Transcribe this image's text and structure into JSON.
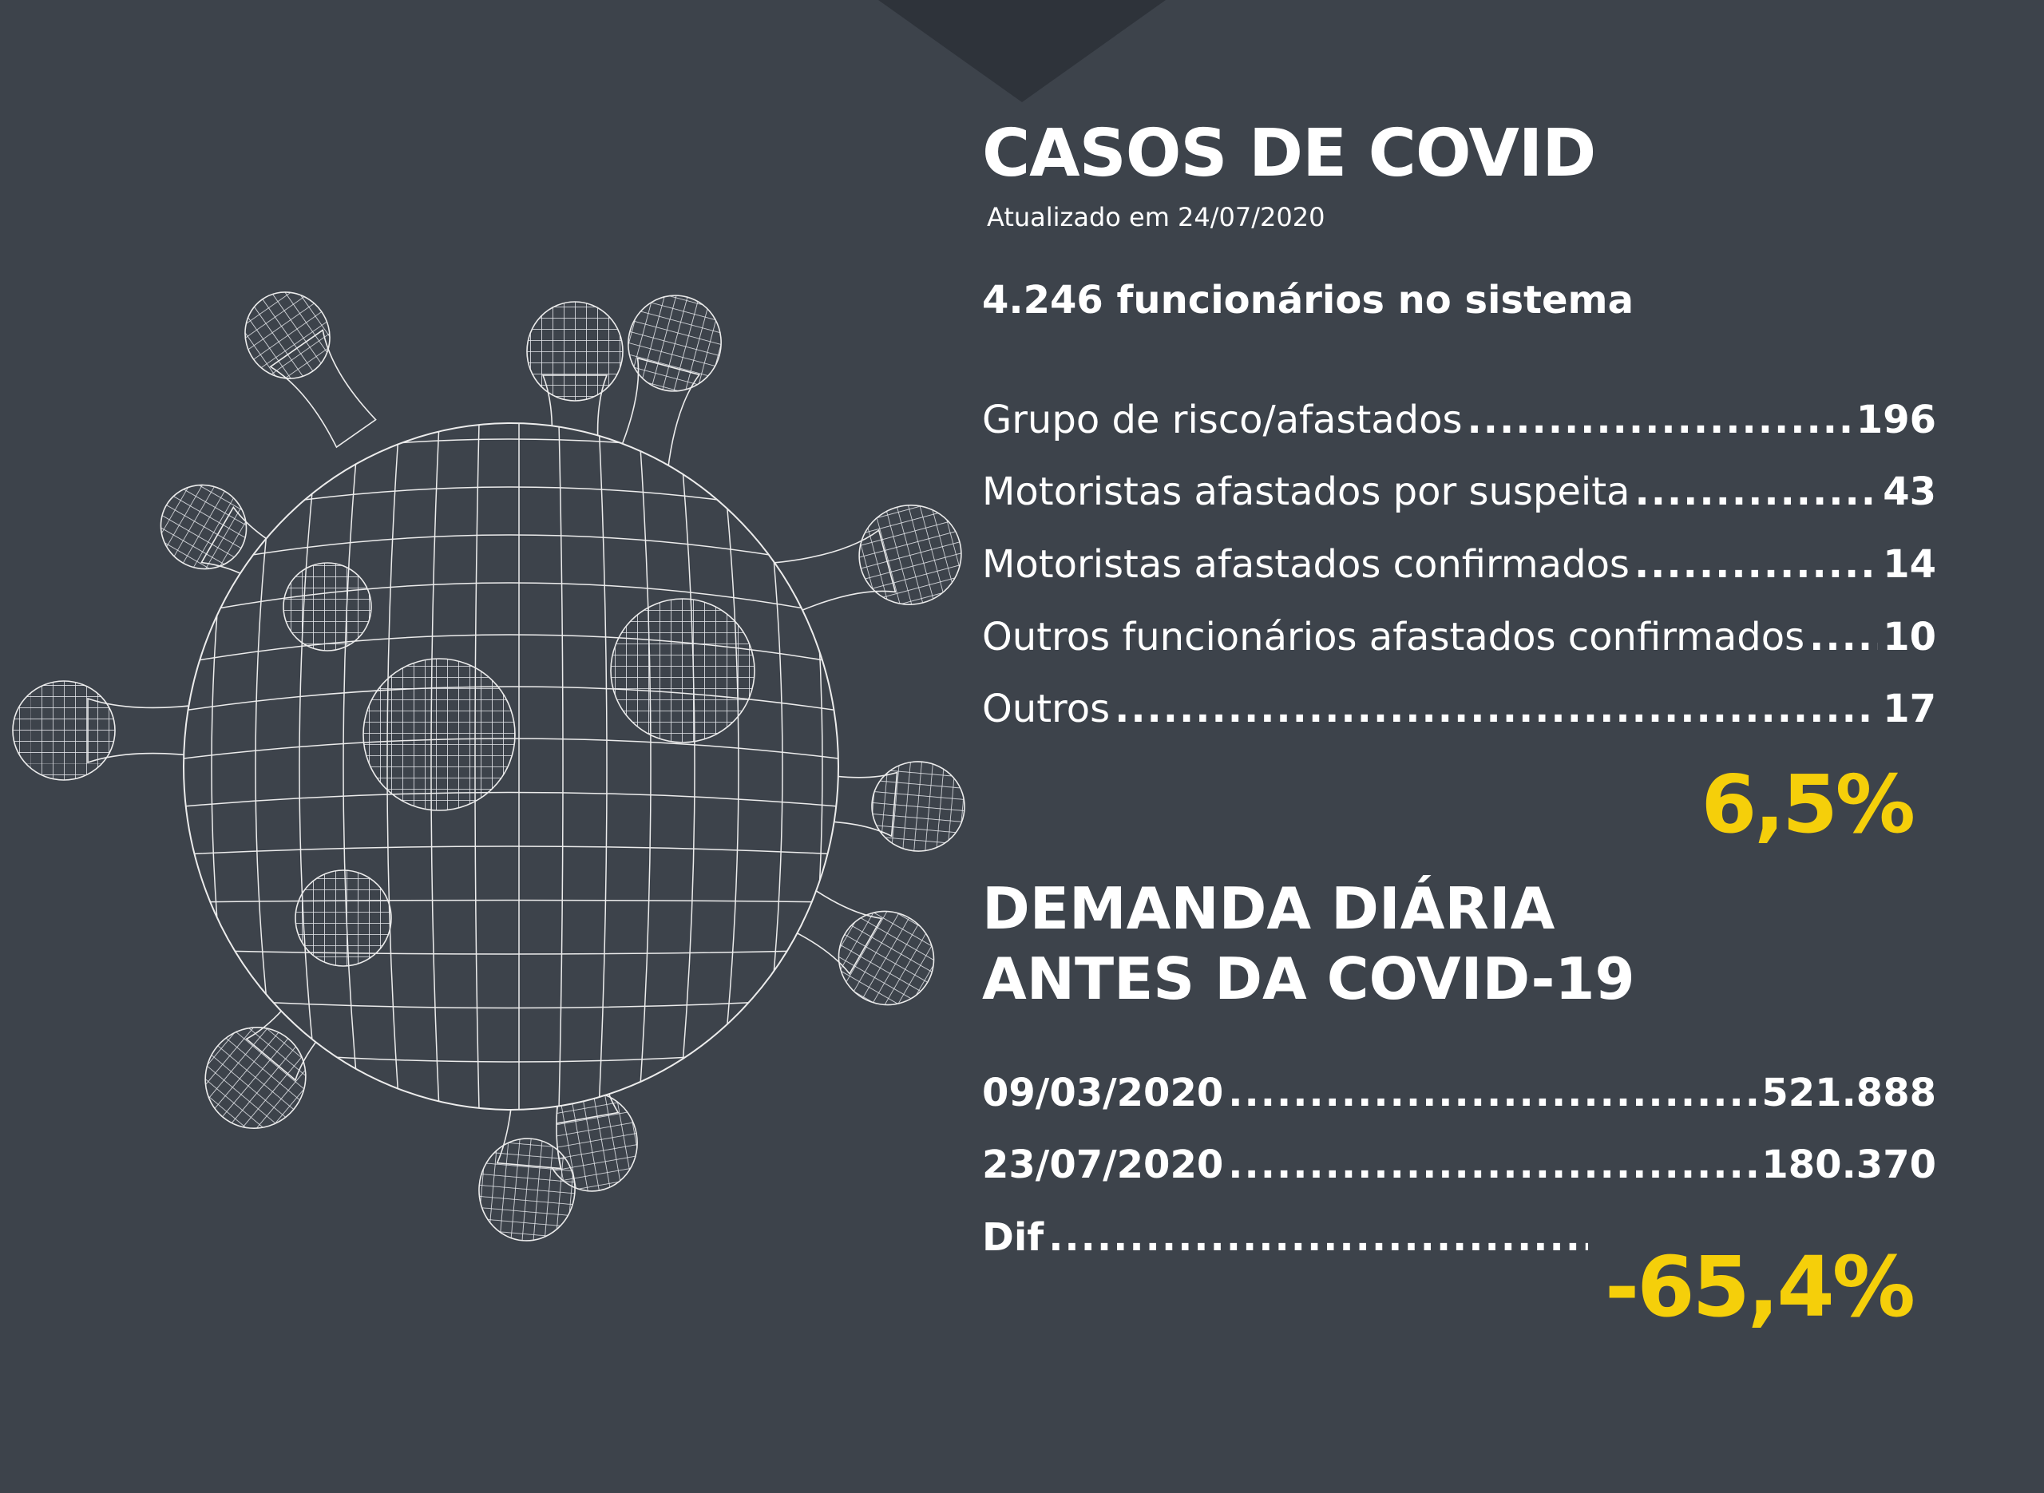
{
  "cases": {
    "title": "CASOS DE COVID",
    "updated": "Atualizado em 24/07/2020",
    "employees": "4.246 funcionários no sistema",
    "rows": [
      {
        "label": "Grupo de risco/afastados",
        "value": "196"
      },
      {
        "label": "Motoristas afastados por suspeita",
        "value": "43"
      },
      {
        "label": "Motoristas afastados confirmados",
        "value": "14"
      },
      {
        "label": "Outros funcionários afastados confirmados",
        "value": "10"
      },
      {
        "label": "Outros",
        "value": "17"
      }
    ],
    "percent": "6,5%"
  },
  "demand": {
    "title_line1": "DEMANDA DIÁRIA",
    "title_line2": "ANTES DA COVID-19",
    "rows": [
      {
        "label": "09/03/2020",
        "value": "521.888"
      },
      {
        "label": "23/07/2020",
        "value": "180.370"
      },
      {
        "label": "Dif",
        "value": ""
      }
    ],
    "percent": "-65,4%"
  },
  "colors": {
    "background": "#3d434b",
    "notch": "#2e333a",
    "accent": "#f5cf0a",
    "text": "#ffffff"
  },
  "illustration": "coronavirus-wireframe-illustration"
}
